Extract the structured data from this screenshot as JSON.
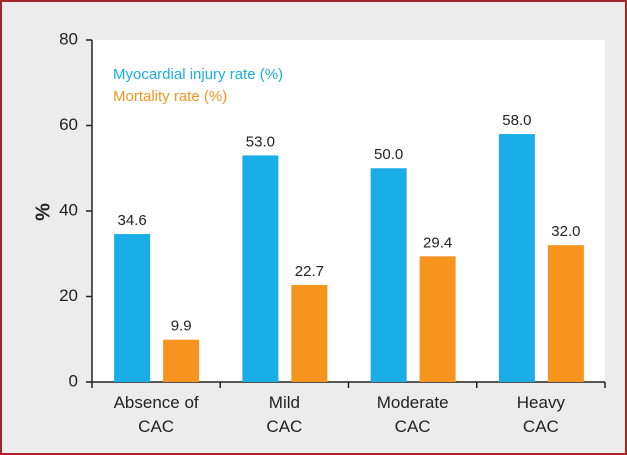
{
  "chart_data": {
    "type": "bar",
    "categories": [
      "Absence of\nCAC",
      "Mild\nCAC",
      "Moderate\nCAC",
      "Heavy\nCAC"
    ],
    "series": [
      {
        "name": "Myocardial injury rate (%)",
        "color": "#19aee8",
        "values": [
          34.6,
          53.0,
          50.0,
          58.0
        ],
        "value_labels": [
          "34.6",
          "53.0",
          "50.0",
          "58.0"
        ]
      },
      {
        "name": "Mortality rate (%)",
        "color": "#f7941d",
        "values": [
          9.9,
          22.7,
          29.4,
          32.0
        ],
        "value_labels": [
          "9.9",
          "22.7",
          "29.4",
          "32.0"
        ]
      }
    ],
    "ylabel": "%",
    "ylim": [
      0,
      80
    ],
    "yticks": [
      0,
      20,
      40,
      60,
      80
    ],
    "grid": false,
    "legend": "upper left"
  }
}
